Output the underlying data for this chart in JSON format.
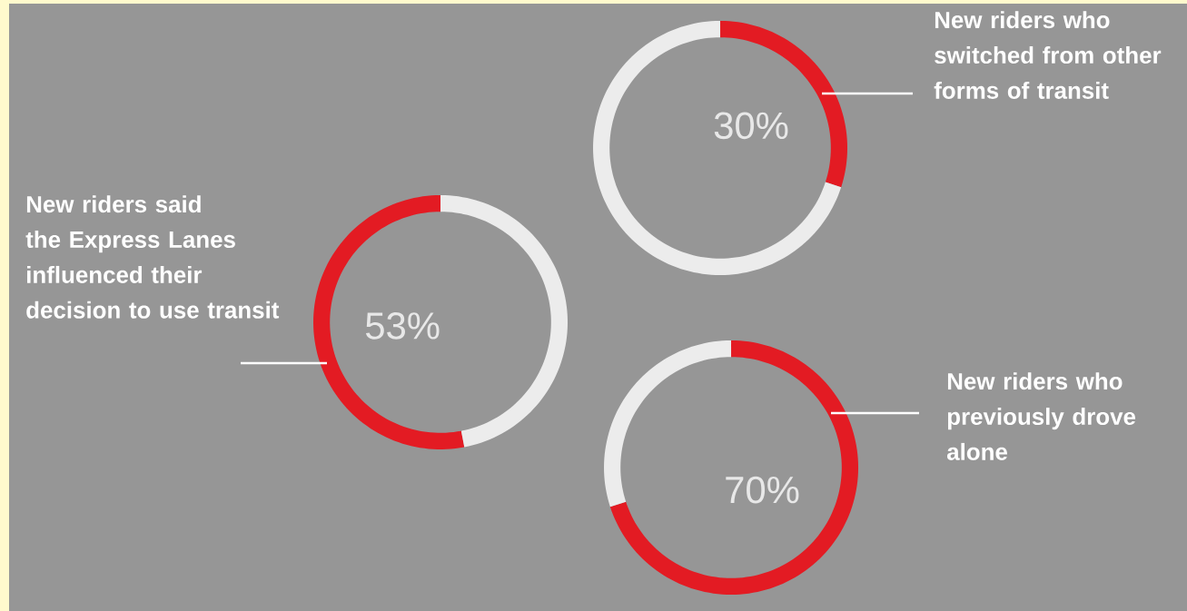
{
  "chart_data": [
    {
      "type": "donut",
      "title": "New riders said the Express Lanes influenced their decision to use transit",
      "categories": [
        null,
        null
      ],
      "values": [
        53,
        47
      ],
      "colors": [
        "#e31b23",
        "#ececec"
      ],
      "value_labels": [
        "53%",
        null
      ]
    },
    {
      "type": "donut",
      "title": "New riders who switched from other forms of transit",
      "categories": [
        null,
        null
      ],
      "values": [
        30,
        70
      ],
      "colors": [
        "#e31b23",
        "#ececec"
      ],
      "value_labels": [
        "30%",
        null
      ]
    },
    {
      "type": "donut",
      "title": "New riders who previously drove alone",
      "categories": [
        null,
        null
      ],
      "values": [
        70,
        30
      ],
      "colors": [
        "#e31b23",
        "#ececec"
      ],
      "value_labels": [
        "70%",
        null
      ]
    }
  ]
}
